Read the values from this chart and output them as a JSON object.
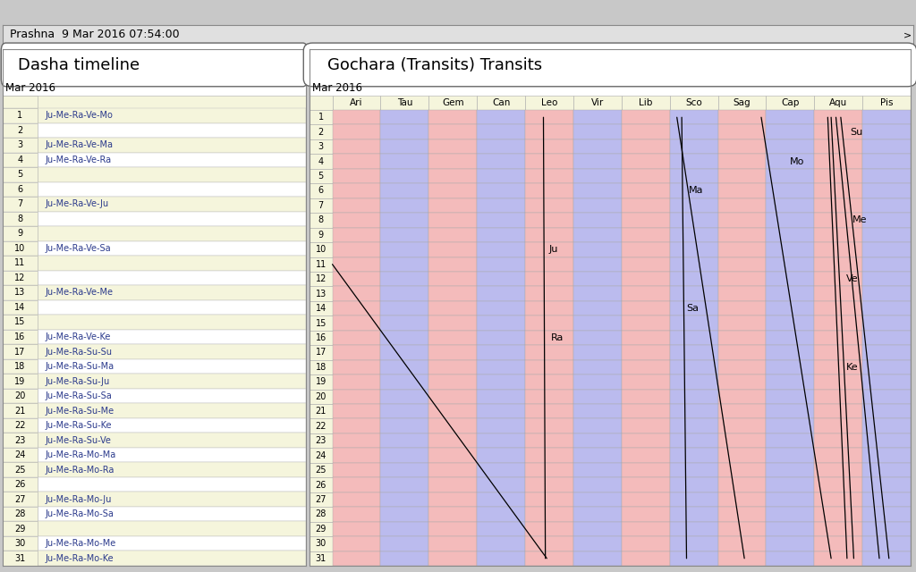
{
  "title_bar": "Prashna  9 Mar 2016 07:54:00",
  "left_title": "Dasha timeline",
  "right_title": "Gochara (Transits) Transits",
  "month_label": "Mar 2016",
  "days": 31,
  "dasha_labels": {
    "1": "Ju-Me-Ra-Ve-Mo",
    "3": "Ju-Me-Ra-Ve-Ma",
    "4": "Ju-Me-Ra-Ve-Ra",
    "7": "Ju-Me-Ra-Ve-Ju",
    "10": "Ju-Me-Ra-Ve-Sa",
    "13": "Ju-Me-Ra-Ve-Me",
    "16": "Ju-Me-Ra-Ve-Ke",
    "17": "Ju-Me-Ra-Su-Su",
    "18": "Ju-Me-Ra-Su-Ma",
    "19": "Ju-Me-Ra-Su-Ju",
    "20": "Ju-Me-Ra-Su-Sa",
    "21": "Ju-Me-Ra-Su-Me",
    "22": "Ju-Me-Ra-Su-Ke",
    "23": "Ju-Me-Ra-Su-Ve",
    "24": "Ju-Me-Ra-Mo-Ma",
    "25": "Ju-Me-Ra-Mo-Ra",
    "27": "Ju-Me-Ra-Mo-Ju",
    "28": "Ju-Me-Ra-Mo-Sa",
    "30": "Ju-Me-Ra-Mo-Me",
    "31": "Ju-Me-Ra-Mo-Ke"
  },
  "zodiac_signs": [
    "Ari",
    "Tau",
    "Gem",
    "Can",
    "Leo",
    "Vir",
    "Lib",
    "Sco",
    "Sag",
    "Cap",
    "Aqu",
    "Pis"
  ],
  "zodiac_colors": [
    "#F4BBBB",
    "#BBBBEE",
    "#F4BBBB",
    "#BBBBEE",
    "#F4BBBB",
    "#BBBBEE",
    "#F4BBBB",
    "#BBBBEE",
    "#F4BBBB",
    "#BBBBEE",
    "#F4BBBB",
    "#BBBBEE"
  ],
  "planet_transits": [
    {
      "name": "Su",
      "d1": 1,
      "s1": 10.55,
      "d2": 31,
      "s2": 11.55,
      "ld": 2,
      "ls": 10.7,
      "lha": "left"
    },
    {
      "name": "Mo",
      "d1": 1,
      "s1": 8.9,
      "d2": 31,
      "s2": 10.35,
      "ld": 4,
      "ls": 9.45,
      "lha": "left"
    },
    {
      "name": "Ma",
      "d1": 1,
      "s1": 7.15,
      "d2": 31,
      "s2": 8.55,
      "ld": 6,
      "ls": 7.35,
      "lha": "left"
    },
    {
      "name": "Me",
      "d1": 1,
      "s1": 10.45,
      "d2": 31,
      "s2": 11.35,
      "ld": 8,
      "ls": 10.75,
      "lha": "left"
    },
    {
      "name": "Ju",
      "d1": 1,
      "s1": 4.38,
      "d2": 31,
      "s2": 4.42,
      "ld": 10,
      "ls": 4.45,
      "lha": "right"
    },
    {
      "name": "Ve",
      "d1": 1,
      "s1": 10.35,
      "d2": 31,
      "s2": 10.82,
      "ld": 12,
      "ls": 10.62,
      "lha": "left"
    },
    {
      "name": "Sa",
      "d1": 1,
      "s1": 7.25,
      "d2": 31,
      "s2": 7.35,
      "ld": 14,
      "ls": 7.3,
      "lha": "left"
    },
    {
      "name": "Ra",
      "d1": 11,
      "s1": 0.0,
      "d2": 31,
      "s2": 4.45,
      "ld": 16,
      "ls": 4.48,
      "lha": "right"
    },
    {
      "name": "Ke",
      "d1": 1,
      "s1": 10.28,
      "d2": 31,
      "s2": 10.68,
      "ld": 18,
      "ls": 10.62,
      "lha": "left"
    }
  ],
  "fig_bg": "#C8C8C8",
  "panel_bg": "#FFFFFF",
  "top_bar_bg": "#E0E0E0",
  "row_odd_color": "#F5F5DC",
  "row_even_color": "#FFFFFF",
  "daycol_color": "#F5F5DC",
  "header_cell_color": "#F5F5DC",
  "text_color_dasha": "#2B3A8C",
  "title_fontsize": 13,
  "day_fontsize": 7,
  "label_fontsize": 8
}
